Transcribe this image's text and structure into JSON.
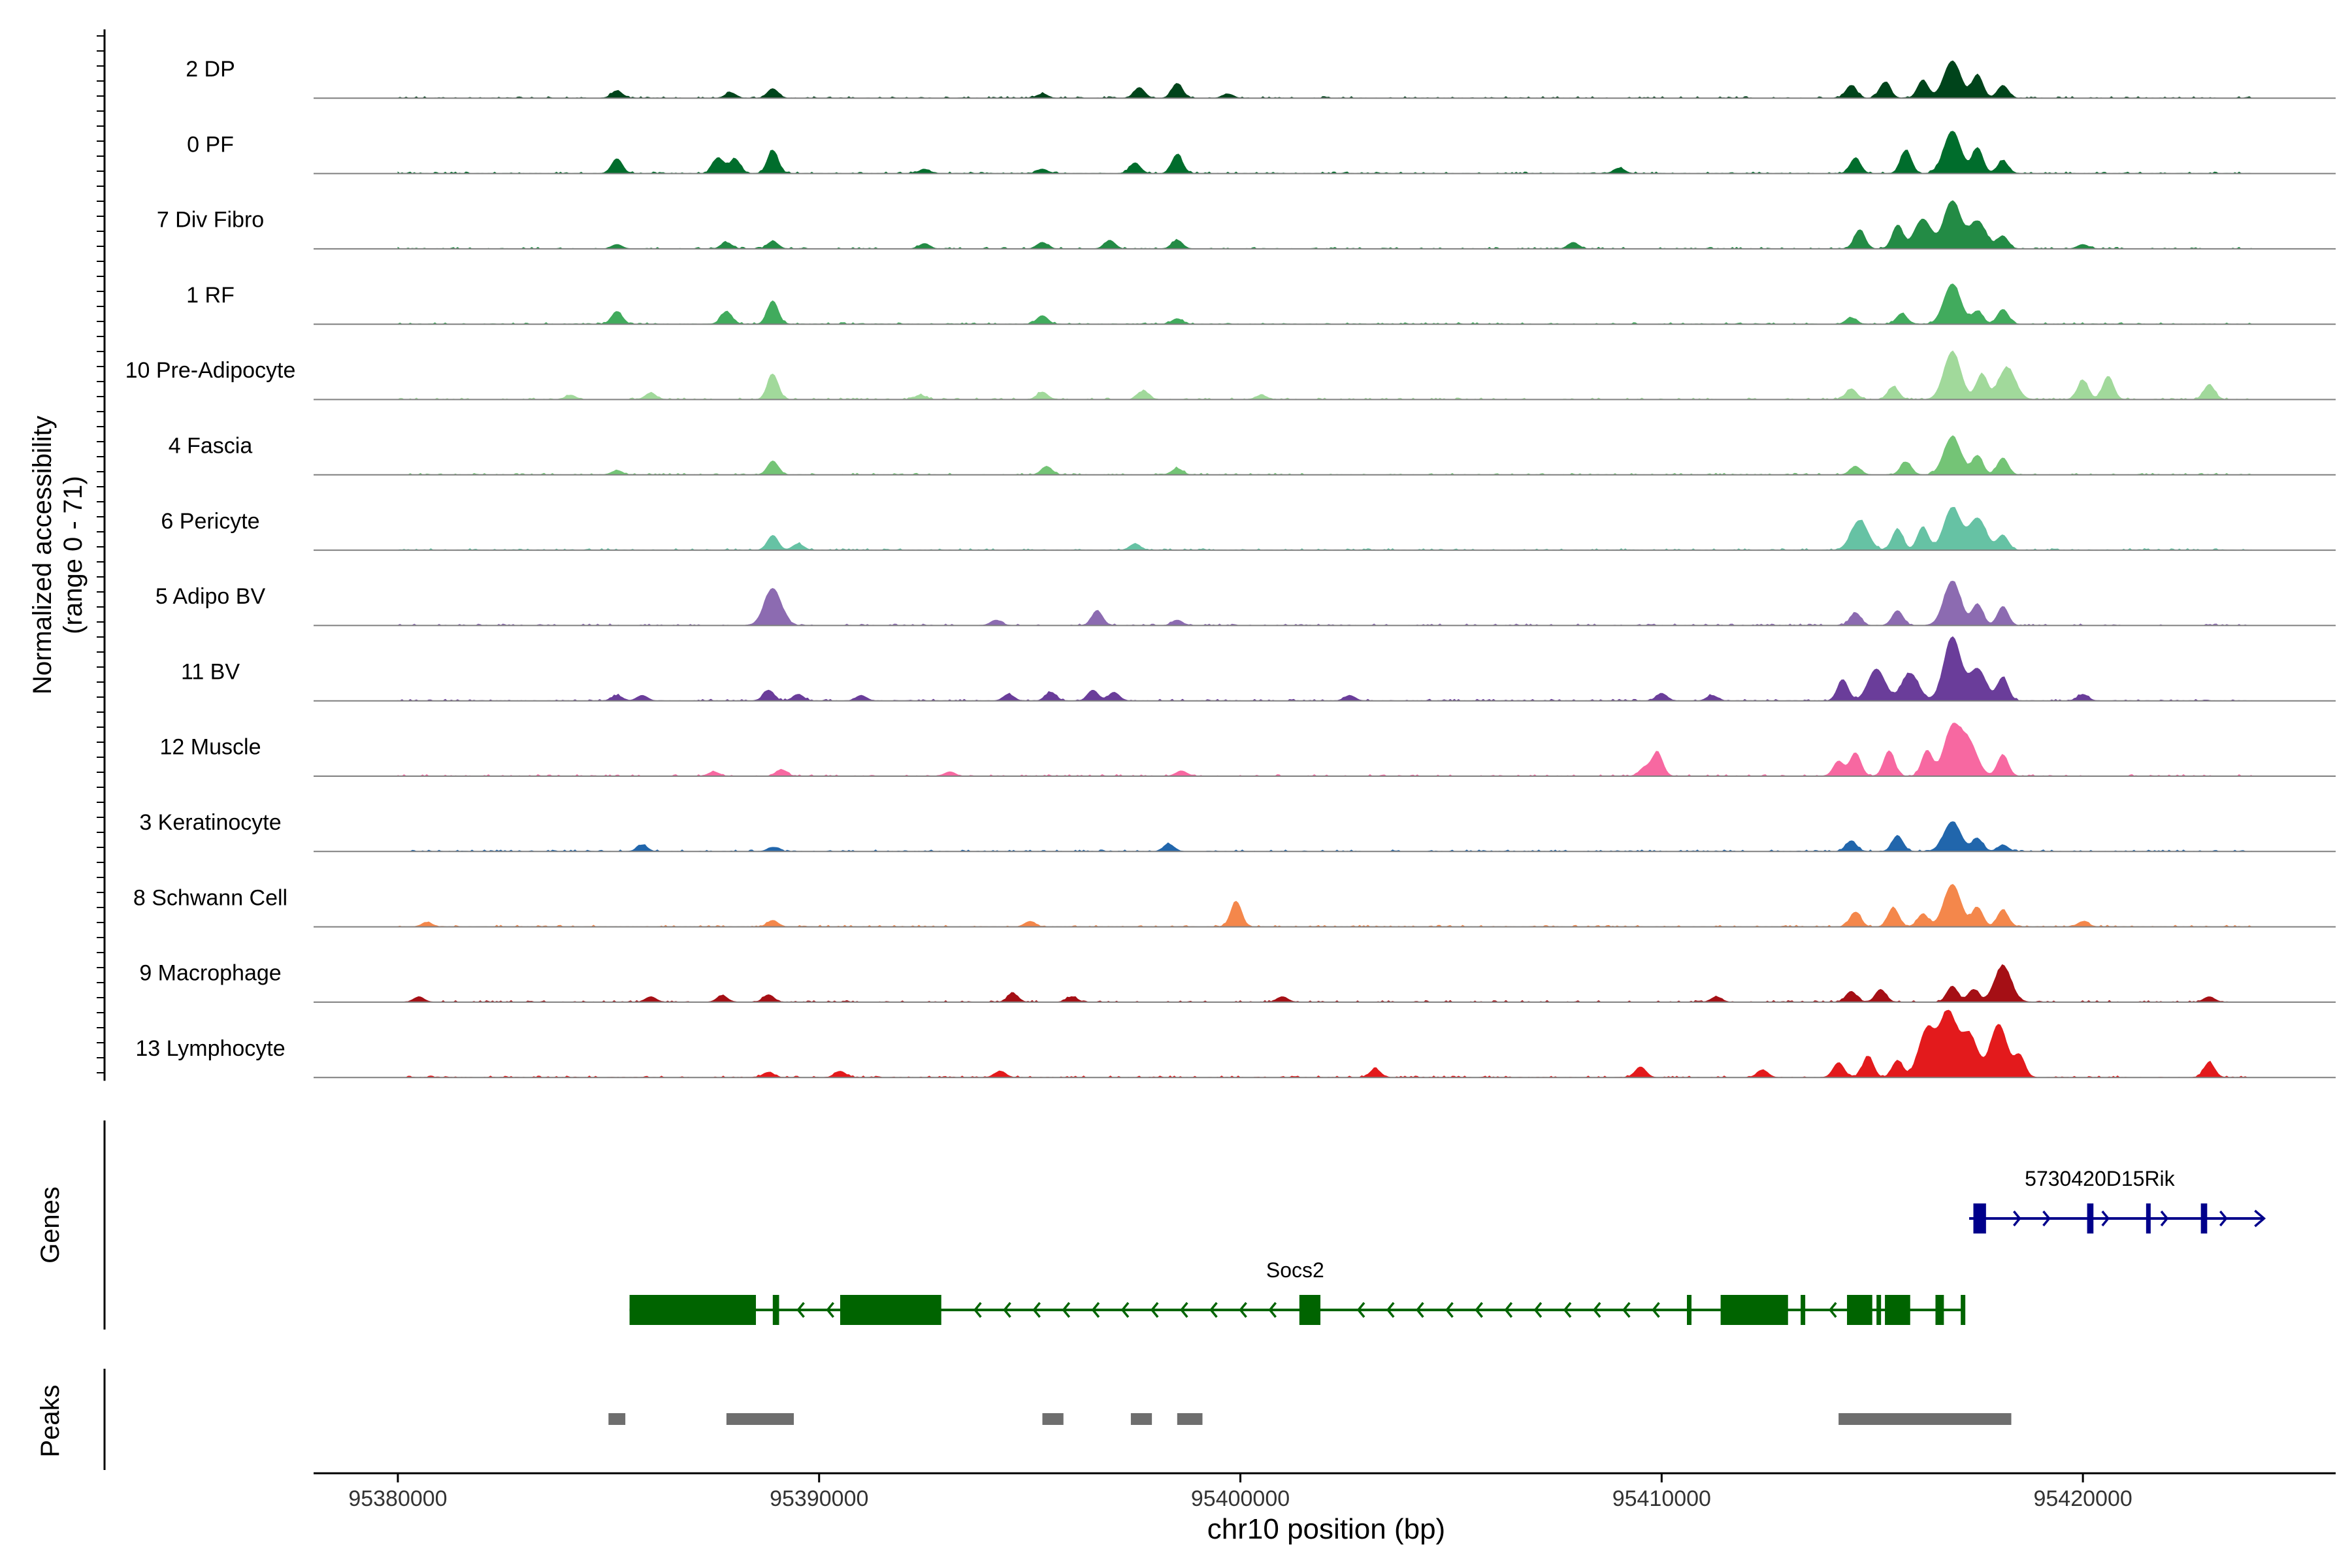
{
  "chart_data": {
    "type": "area",
    "chromosome": "chr10",
    "xlabel": "chr10 position (bp)",
    "ylabel_line1": "Normalized accessibility",
    "ylabel_line2": "(range 0 - 71)",
    "y_range": [
      0,
      71
    ],
    "x_range": [
      95378000,
      95426000
    ],
    "x_ticks": [
      {
        "value": 95380000,
        "label": "95380000"
      },
      {
        "value": 95390000,
        "label": "95390000"
      },
      {
        "value": 95400000,
        "label": "95400000"
      },
      {
        "value": 95410000,
        "label": "95410000"
      },
      {
        "value": 95420000,
        "label": "95420000"
      }
    ],
    "panel_labels": {
      "genes": "Genes",
      "peaks": "Peaks"
    },
    "series": [
      {
        "name": "2 DP",
        "color": "#00441b",
        "peaks": [
          [
            95385200,
            7
          ],
          [
            95387900,
            5
          ],
          [
            95388900,
            9
          ],
          [
            95395300,
            4
          ],
          [
            95397600,
            10
          ],
          [
            95398500,
            14
          ],
          [
            95399700,
            4
          ],
          [
            95414500,
            12
          ],
          [
            95415300,
            15
          ],
          [
            95416200,
            17
          ],
          [
            95416900,
            35
          ],
          [
            95417500,
            22
          ],
          [
            95418100,
            12
          ]
        ]
      },
      {
        "name": "0 PF",
        "color": "#006d2c",
        "peaks": [
          [
            95385200,
            14
          ],
          [
            95387600,
            15
          ],
          [
            95388000,
            14
          ],
          [
            95388900,
            22
          ],
          [
            95392500,
            4
          ],
          [
            95395300,
            4
          ],
          [
            95397500,
            10
          ],
          [
            95398500,
            18
          ],
          [
            95409000,
            5
          ],
          [
            95414600,
            14
          ],
          [
            95415800,
            22
          ],
          [
            95416900,
            40
          ],
          [
            95417500,
            24
          ],
          [
            95418100,
            12
          ]
        ]
      },
      {
        "name": "7 Div Fibro",
        "color": "#238b45",
        "peaks": [
          [
            95385200,
            4
          ],
          [
            95387800,
            6
          ],
          [
            95388900,
            7
          ],
          [
            95392500,
            5
          ],
          [
            95395300,
            6
          ],
          [
            95396900,
            8
          ],
          [
            95398500,
            8
          ],
          [
            95407900,
            6
          ],
          [
            95414700,
            18
          ],
          [
            95415600,
            22
          ],
          [
            95416200,
            28
          ],
          [
            95416900,
            45
          ],
          [
            95417500,
            26
          ],
          [
            95418100,
            12
          ],
          [
            95420000,
            4
          ]
        ]
      },
      {
        "name": "1 RF",
        "color": "#41ab5d",
        "peaks": [
          [
            95385200,
            12
          ],
          [
            95387800,
            12
          ],
          [
            95388900,
            22
          ],
          [
            95395300,
            8
          ],
          [
            95398500,
            5
          ],
          [
            95414500,
            6
          ],
          [
            95415700,
            10
          ],
          [
            95416900,
            38
          ],
          [
            95417500,
            12
          ],
          [
            95418100,
            14
          ]
        ]
      },
      {
        "name": "10 Pre-Adipocyte",
        "color": "#a1d99b",
        "peaks": [
          [
            95384100,
            4
          ],
          [
            95386000,
            6
          ],
          [
            95388900,
            24
          ],
          [
            95392400,
            4
          ],
          [
            95395300,
            7
          ],
          [
            95397700,
            8
          ],
          [
            95400500,
            4
          ],
          [
            95414500,
            10
          ],
          [
            95415500,
            12
          ],
          [
            95416900,
            45
          ],
          [
            95417600,
            24
          ],
          [
            95418200,
            30
          ],
          [
            95420000,
            18
          ],
          [
            95420600,
            22
          ],
          [
            95423000,
            14
          ]
        ]
      },
      {
        "name": "4 Fascia",
        "color": "#74c476",
        "peaks": [
          [
            95385200,
            4
          ],
          [
            95388900,
            13
          ],
          [
            95395400,
            8
          ],
          [
            95398500,
            6
          ],
          [
            95414600,
            8
          ],
          [
            95415800,
            12
          ],
          [
            95416900,
            36
          ],
          [
            95417500,
            18
          ],
          [
            95418100,
            16
          ]
        ]
      },
      {
        "name": "6 Pericyte",
        "color": "#66c2a4",
        "peaks": [
          [
            95388900,
            14
          ],
          [
            95389500,
            6
          ],
          [
            95397500,
            6
          ],
          [
            95414700,
            28
          ],
          [
            95415600,
            20
          ],
          [
            95416200,
            22
          ],
          [
            95416900,
            40
          ],
          [
            95417500,
            30
          ],
          [
            95418100,
            14
          ]
        ]
      },
      {
        "name": "5 Adipo BV",
        "color": "#8c6bb1",
        "peaks": [
          [
            95388900,
            35
          ],
          [
            95394200,
            5
          ],
          [
            95396600,
            14
          ],
          [
            95398500,
            5
          ],
          [
            95414600,
            12
          ],
          [
            95415600,
            14
          ],
          [
            95416900,
            42
          ],
          [
            95417500,
            20
          ],
          [
            95418100,
            18
          ]
        ]
      },
      {
        "name": "11 BV",
        "color": "#6a3d9a",
        "peaks": [
          [
            95385200,
            5
          ],
          [
            95385800,
            5
          ],
          [
            95388800,
            10
          ],
          [
            95389500,
            6
          ],
          [
            95391000,
            5
          ],
          [
            95394500,
            6
          ],
          [
            95395500,
            8
          ],
          [
            95396500,
            10
          ],
          [
            95397000,
            8
          ],
          [
            95402600,
            5
          ],
          [
            95410000,
            7
          ],
          [
            95411200,
            5
          ],
          [
            95414300,
            20
          ],
          [
            95415100,
            30
          ],
          [
            95415900,
            26
          ],
          [
            95416900,
            60
          ],
          [
            95417500,
            30
          ],
          [
            95418100,
            22
          ],
          [
            95420000,
            6
          ]
        ]
      },
      {
        "name": "12 Muscle",
        "color": "#f768a1",
        "peaks": [
          [
            95387500,
            4
          ],
          [
            95389100,
            6
          ],
          [
            95393100,
            4
          ],
          [
            95398600,
            5
          ],
          [
            95409600,
            8
          ],
          [
            95409900,
            22
          ],
          [
            95414200,
            14
          ],
          [
            95414600,
            22
          ],
          [
            95415400,
            24
          ],
          [
            95416300,
            24
          ],
          [
            95416900,
            45
          ],
          [
            95417300,
            30
          ],
          [
            95418100,
            20
          ]
        ]
      },
      {
        "name": "3 Keratinocyte",
        "color": "#2166ac",
        "peaks": [
          [
            95385800,
            6
          ],
          [
            95388900,
            4
          ],
          [
            95398300,
            7
          ],
          [
            95414500,
            10
          ],
          [
            95415600,
            15
          ],
          [
            95416900,
            28
          ],
          [
            95417500,
            12
          ],
          [
            95418100,
            6
          ]
        ]
      },
      {
        "name": "8 Schwann Cell",
        "color": "#f4874b",
        "peaks": [
          [
            95380700,
            4
          ],
          [
            95388900,
            6
          ],
          [
            95395000,
            5
          ],
          [
            95399900,
            24
          ],
          [
            95414600,
            14
          ],
          [
            95415500,
            18
          ],
          [
            95416200,
            12
          ],
          [
            95416900,
            40
          ],
          [
            95417500,
            18
          ],
          [
            95418100,
            16
          ],
          [
            95420000,
            5
          ]
        ]
      },
      {
        "name": "9 Macrophage",
        "color": "#a50f15",
        "peaks": [
          [
            95380500,
            5
          ],
          [
            95386000,
            5
          ],
          [
            95387700,
            6
          ],
          [
            95388800,
            7
          ],
          [
            95394600,
            8
          ],
          [
            95396000,
            5
          ],
          [
            95401000,
            5
          ],
          [
            95411300,
            5
          ],
          [
            95414500,
            10
          ],
          [
            95415200,
            12
          ],
          [
            95416900,
            15
          ],
          [
            95417400,
            12
          ],
          [
            95418100,
            34
          ],
          [
            95423000,
            5
          ]
        ]
      },
      {
        "name": "13 Lymphocyte",
        "color": "#e31a1c",
        "peaks": [
          [
            95388800,
            5
          ],
          [
            95390500,
            6
          ],
          [
            95394300,
            6
          ],
          [
            95403200,
            8
          ],
          [
            95409500,
            10
          ],
          [
            95412400,
            7
          ],
          [
            95414200,
            14
          ],
          [
            95414900,
            20
          ],
          [
            95415600,
            16
          ],
          [
            95416300,
            45
          ],
          [
            95416800,
            60
          ],
          [
            95417300,
            40
          ],
          [
            95418000,
            50
          ],
          [
            95418500,
            20
          ],
          [
            95423000,
            14
          ]
        ]
      }
    ],
    "genes": [
      {
        "name": "Socs2",
        "strand": "-",
        "color": "#006400",
        "start": 95385500,
        "end": 95417200,
        "label_x": 95401300,
        "exons": [
          [
            95385500,
            95388500
          ],
          [
            95388900,
            95389050
          ],
          [
            95390500,
            95392900
          ],
          [
            95401400,
            95401900
          ],
          [
            95410600,
            95410700
          ],
          [
            95411400,
            95413000
          ],
          [
            95413300,
            95413400
          ],
          [
            95414400,
            95415000
          ],
          [
            95415100,
            95415200
          ],
          [
            95415300,
            95415900
          ],
          [
            95416500,
            95416700
          ],
          [
            95417100,
            95417200
          ]
        ]
      },
      {
        "name": "5730420D15Rik",
        "strand": "+",
        "color": "#00008b",
        "start": 95417300,
        "end": 95424300,
        "label_x": 95420400,
        "exons": [
          [
            95417400,
            95417700
          ],
          [
            95420100,
            95420250
          ],
          [
            95421500,
            95421600
          ],
          [
            95422800,
            95422950
          ]
        ]
      }
    ],
    "peaks_track": [
      [
        95385000,
        95385400
      ],
      [
        95387800,
        95389400
      ],
      [
        95395300,
        95395800
      ],
      [
        95397400,
        95397900
      ],
      [
        95398500,
        95399100
      ],
      [
        95414200,
        95418300
      ]
    ]
  }
}
